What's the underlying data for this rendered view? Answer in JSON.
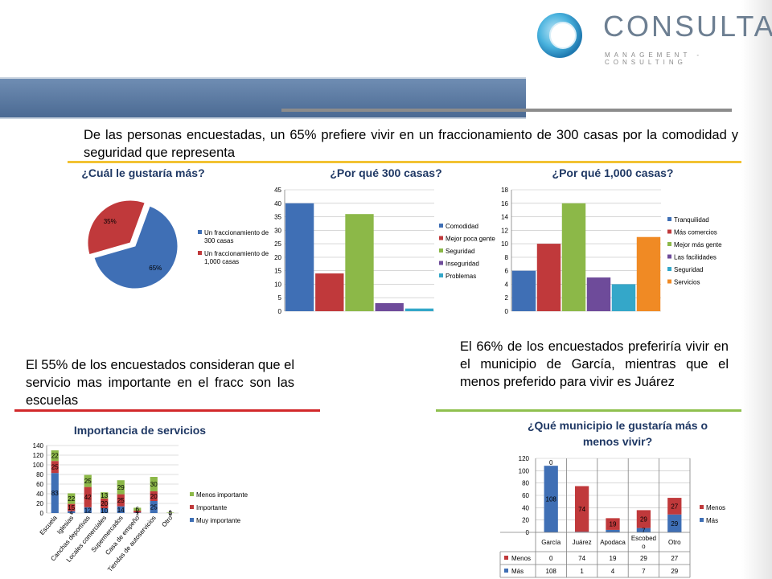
{
  "header": {
    "brand": "CONSULTA",
    "brand_sub": "MANAGEMENT - CONSULTING"
  },
  "texts": {
    "intro": "De las personas encuestadas, un 65% prefiere vivir en un fraccionamiento de 300 casas por la comodidad y seguridad que representa",
    "services": "El 55% de los encuestados consideran que el servicio mas importante en el fracc son las escuelas",
    "municipality": "El 66% de los encuestados preferiría vivir en el municipio de García, mientras que el menos preferido para vivir es Juárez"
  },
  "colors": {
    "blue": "#3f6fb5",
    "red": "#c0393b",
    "green": "#8cb848",
    "purple": "#6e4b9a",
    "cyan": "#34a7c9",
    "orange": "#f08a24",
    "yellow_rule": "#f2c232",
    "red_rule": "#d2282a",
    "green_rule": "#8fc04e"
  },
  "chart_data": [
    {
      "id": "pie",
      "type": "pie",
      "title": "¿Cuál le gustaría más?",
      "slices": [
        {
          "name": "Un fraccionamiento de 300 casas",
          "value": 65,
          "label": "65%",
          "color": "#3f6fb5"
        },
        {
          "name": "Un fraccionamiento de 1,000 casas",
          "value": 35,
          "label": "35%",
          "color": "#c0393b"
        }
      ],
      "legend": "right"
    },
    {
      "id": "c300",
      "type": "bar",
      "title": "¿Por qué 300 casas?",
      "categories": [
        "Comodidad",
        "Mejor poca gente",
        "Seguridad",
        "Inseguridad",
        "Problemas"
      ],
      "values": [
        40,
        14,
        36,
        3,
        1
      ],
      "colors": [
        "#3f6fb5",
        "#c0393b",
        "#8cb848",
        "#6e4b9a",
        "#34a7c9"
      ],
      "ylim": [
        0,
        45
      ],
      "yticks": [
        0,
        5,
        10,
        15,
        20,
        25,
        30,
        35,
        40,
        45
      ],
      "legend": "right"
    },
    {
      "id": "c1000",
      "type": "bar",
      "title": "¿Por qué 1,000 casas?",
      "categories": [
        "Tranquilidad",
        "Más comercios",
        "Mejor más gente",
        "Las facilidades",
        "Seguridad",
        "Servicios"
      ],
      "values": [
        6,
        10,
        16,
        5,
        4,
        11
      ],
      "colors": [
        "#3f6fb5",
        "#c0393b",
        "#8cb848",
        "#6e4b9a",
        "#34a7c9",
        "#f08a24"
      ],
      "ylim": [
        0,
        18
      ],
      "yticks": [
        0,
        2,
        4,
        6,
        8,
        10,
        12,
        14,
        16,
        18
      ],
      "legend": "right"
    },
    {
      "id": "services",
      "type": "bar",
      "stacked": true,
      "title": "Importancia de servicios",
      "categories": [
        "Escuela",
        "Iglesias",
        "Canchas deportivas",
        "Locales comerciales",
        "Supermercados",
        "Casa de empeño",
        "Tiendas de autoservicios",
        "Otro"
      ],
      "series": [
        {
          "name": "Muy importante",
          "values": [
            83,
            4,
            12,
            10,
            14,
            1,
            25,
            0
          ],
          "color": "#3f6fb5"
        },
        {
          "name": "Importante",
          "values": [
            25,
            15,
            42,
            20,
            25,
            4,
            20,
            0
          ],
          "color": "#c0393b"
        },
        {
          "name": "Menos importante",
          "values": [
            22,
            22,
            25,
            13,
            29,
            6,
            30,
            1
          ],
          "color": "#8cb848"
        }
      ],
      "ylim": [
        0,
        140
      ],
      "yticks": [
        0,
        20,
        40,
        60,
        80,
        100,
        120,
        140
      ],
      "legend": "right"
    },
    {
      "id": "municipio",
      "type": "bar",
      "stacked": true,
      "title": "¿Qué municipio le gustaría más o menos vivir?",
      "title_lines": [
        "¿Qué municipio le gustaría más o",
        "menos vivir?"
      ],
      "categories": [
        "García",
        "Juárez",
        "Apodaca",
        "Escobedo",
        "Otro"
      ],
      "category_lines": [
        [
          "García"
        ],
        [
          "Juárez"
        ],
        [
          "Apodaca"
        ],
        [
          "Escobed",
          "o"
        ],
        [
          "Otro"
        ]
      ],
      "series": [
        {
          "name": "Más",
          "values": [
            108,
            1,
            4,
            7,
            29
          ],
          "color": "#3f6fb5"
        },
        {
          "name": "Menos",
          "values": [
            0,
            74,
            19,
            29,
            27
          ],
          "color": "#c0393b"
        }
      ],
      "ylim": [
        0,
        120
      ],
      "yticks": [
        0,
        20,
        40,
        60,
        80,
        100,
        120
      ],
      "legend": "right",
      "data_table": true
    }
  ]
}
